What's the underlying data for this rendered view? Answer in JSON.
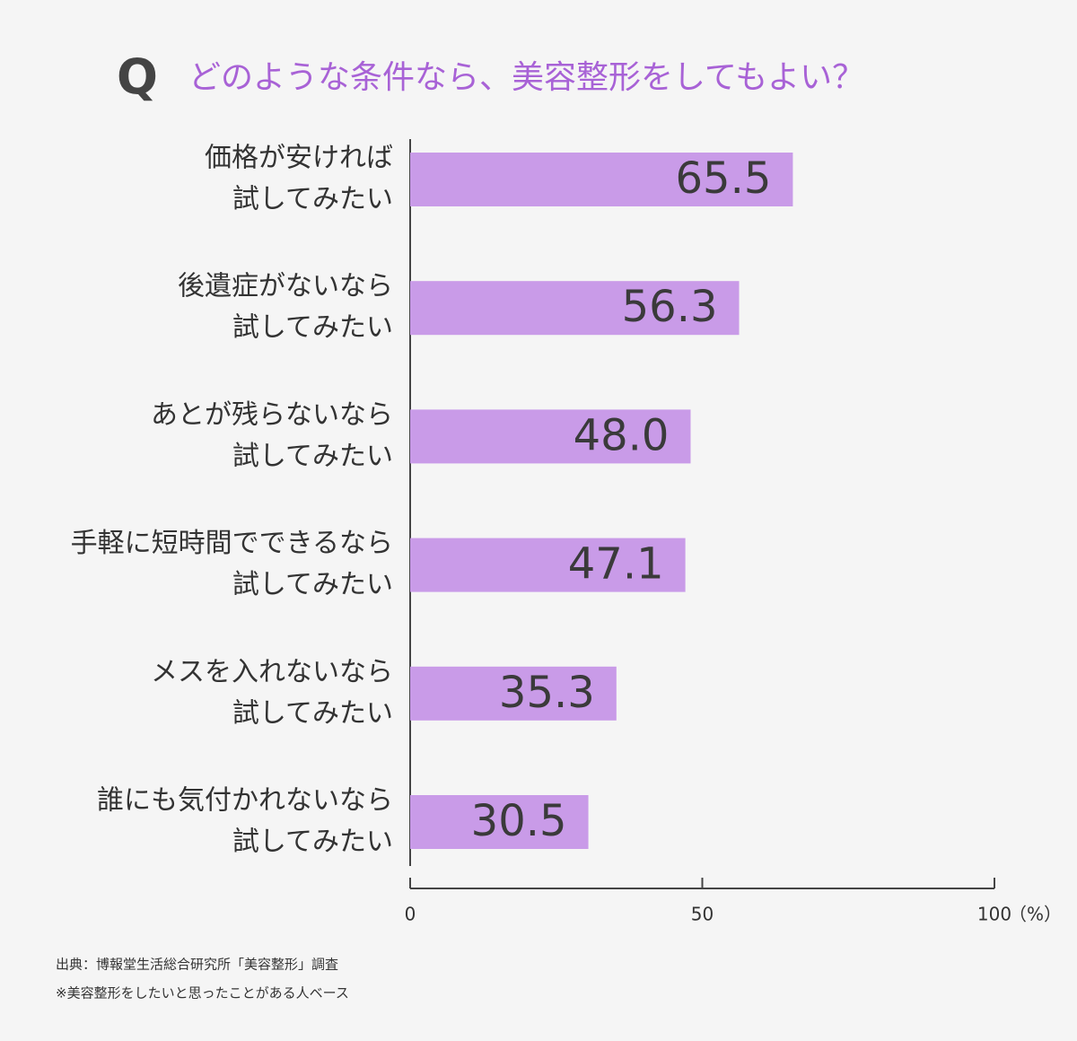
{
  "chart_data": {
    "type": "bar",
    "orientation": "horizontal",
    "question_label": "Q",
    "title": "どのような条件なら、美容整形をしてもよい？",
    "categories": [
      [
        "価格が安ければ",
        "試してみたい"
      ],
      [
        "後遺症がないなら",
        "試してみたい"
      ],
      [
        "あとが残らないなら",
        "試してみたい"
      ],
      [
        "手軽に短時間でできるなら",
        "試してみたい"
      ],
      [
        "メスを入れないなら",
        "試してみたい"
      ],
      [
        "誰にも気付かれないなら",
        "試してみたい"
      ]
    ],
    "values": [
      65.5,
      56.3,
      48.0,
      47.1,
      35.3,
      30.5
    ],
    "value_labels": [
      "65.5",
      "56.3",
      "48.0",
      "47.1",
      "35.3",
      "30.5"
    ],
    "color": "#c99be8",
    "xlim": [
      0,
      100
    ],
    "xticks": [
      0,
      50,
      100
    ],
    "x_unit": "（%）",
    "notes": [
      "出典：博報堂生活総合研究所「美容整形」調査",
      "※美容整形をしたいと思ったことがある人ベース"
    ]
  }
}
